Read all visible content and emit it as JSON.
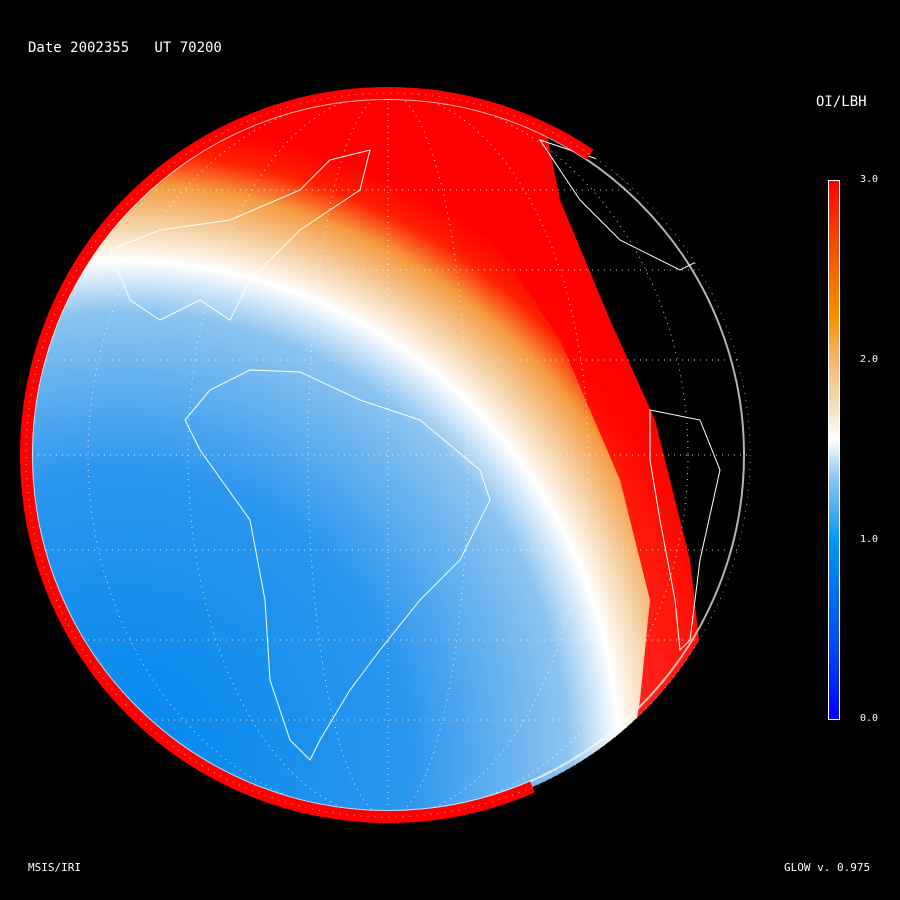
{
  "header": {
    "title": "Date 2002355   UT 70200"
  },
  "colorbar": {
    "title": "OI/LBH",
    "ticks": [
      "3.0",
      "2.0",
      "1.0",
      "0.0"
    ],
    "range": [
      0.0,
      3.0
    ],
    "colors": {
      "low": "#0000ff",
      "mid": "#ffffff",
      "high": "#ff0000"
    }
  },
  "footer": {
    "model": "MSIS/IRI",
    "version": "GLOW v. 0.975"
  },
  "map": {
    "projection": "orthographic globe",
    "grid": true,
    "coastlines": true,
    "night_side": "black"
  }
}
